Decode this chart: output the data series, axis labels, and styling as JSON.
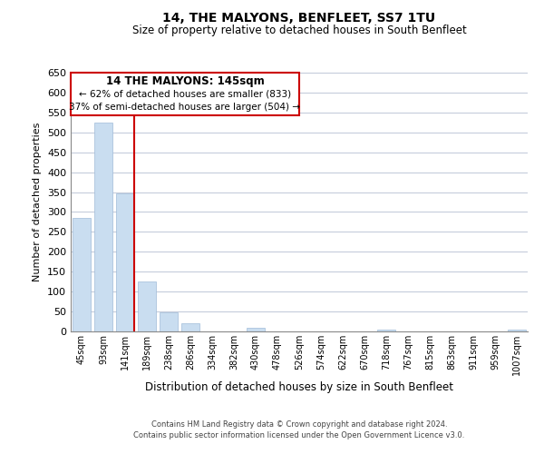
{
  "title_line1": "14, THE MALYONS, BENFLEET, SS7 1TU",
  "title_line2": "Size of property relative to detached houses in South Benfleet",
  "xlabel": "Distribution of detached houses by size in South Benfleet",
  "ylabel": "Number of detached properties",
  "categories": [
    "45sqm",
    "93sqm",
    "141sqm",
    "189sqm",
    "238sqm",
    "286sqm",
    "334sqm",
    "382sqm",
    "430sqm",
    "478sqm",
    "526sqm",
    "574sqm",
    "622sqm",
    "670sqm",
    "718sqm",
    "767sqm",
    "815sqm",
    "863sqm",
    "911sqm",
    "959sqm",
    "1007sqm"
  ],
  "values": [
    285,
    525,
    347,
    125,
    48,
    20,
    0,
    0,
    8,
    0,
    0,
    0,
    0,
    0,
    4,
    0,
    0,
    0,
    0,
    0,
    4
  ],
  "bar_color": "#c9ddf0",
  "bar_edge_color": "#a0bcd8",
  "vline_x_index": 2,
  "vline_color": "#cc0000",
  "ann_line1": "14 THE MALYONS: 145sqm",
  "ann_line2": "← 62% of detached houses are smaller (833)",
  "ann_line3": "37% of semi-detached houses are larger (504) →",
  "box_edge_color": "#cc0000",
  "ylim": [
    0,
    650
  ],
  "yticks": [
    0,
    50,
    100,
    150,
    200,
    250,
    300,
    350,
    400,
    450,
    500,
    550,
    600,
    650
  ],
  "footer_line1": "Contains HM Land Registry data © Crown copyright and database right 2024.",
  "footer_line2": "Contains public sector information licensed under the Open Government Licence v3.0.",
  "background_color": "#ffffff",
  "grid_color": "#c0c8d8"
}
